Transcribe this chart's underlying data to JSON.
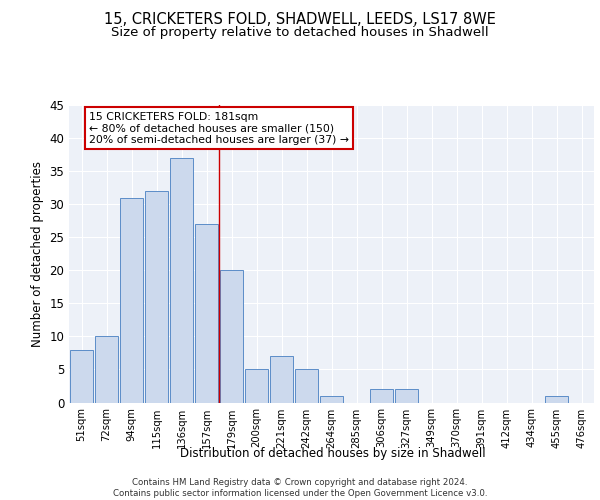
{
  "title_line1": "15, CRICKETERS FOLD, SHADWELL, LEEDS, LS17 8WE",
  "title_line2": "Size of property relative to detached houses in Shadwell",
  "xlabel": "Distribution of detached houses by size in Shadwell",
  "ylabel": "Number of detached properties",
  "categories": [
    "51sqm",
    "72sqm",
    "94sqm",
    "115sqm",
    "136sqm",
    "157sqm",
    "179sqm",
    "200sqm",
    "221sqm",
    "242sqm",
    "264sqm",
    "285sqm",
    "306sqm",
    "327sqm",
    "349sqm",
    "370sqm",
    "391sqm",
    "412sqm",
    "434sqm",
    "455sqm",
    "476sqm"
  ],
  "values": [
    8,
    10,
    31,
    32,
    37,
    27,
    20,
    5,
    7,
    5,
    1,
    0,
    2,
    2,
    0,
    0,
    0,
    0,
    0,
    1,
    0
  ],
  "bar_color": "#ccd9ed",
  "bar_edge_color": "#5b8dc8",
  "bar_linewidth": 0.7,
  "vline_color": "#cc0000",
  "annotation_text": "15 CRICKETERS FOLD: 181sqm\n← 80% of detached houses are smaller (150)\n20% of semi-detached houses are larger (37) →",
  "annotation_box_edgecolor": "#cc0000",
  "annotation_box_facecolor": "white",
  "ylim": [
    0,
    45
  ],
  "yticks": [
    0,
    5,
    10,
    15,
    20,
    25,
    30,
    35,
    40,
    45
  ],
  "background_color": "#edf1f8",
  "grid_color": "#ffffff",
  "footer_text": "Contains HM Land Registry data © Crown copyright and database right 2024.\nContains public sector information licensed under the Open Government Licence v3.0.",
  "title_fontsize": 10.5,
  "subtitle_fontsize": 9.5,
  "bar_width": 0.9
}
